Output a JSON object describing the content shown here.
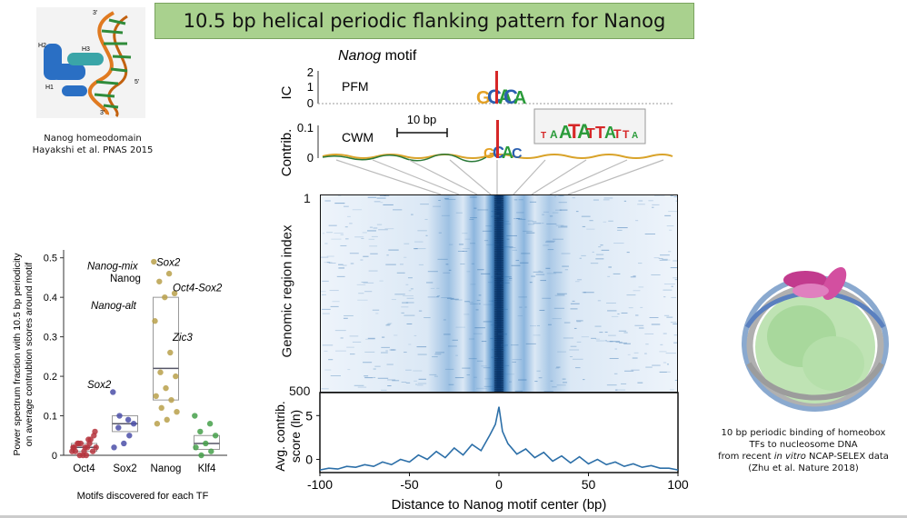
{
  "slide": {
    "title": "10.5 bp helical periodic flanking pattern for Nanog",
    "left_caption_line1": "Nanog homeodomain",
    "left_caption_line2": "Hayakshi et al. PNAS 2015",
    "right_caption_line1": "10 bp periodic binding of homeobox",
    "right_caption_line2": "TFs to nucleosome DNA",
    "right_caption_line3_pre": "from recent ",
    "right_caption_line3_em": "in vitro",
    "right_caption_line3_post": " NCAP-SELEX data",
    "right_caption_line4": "(Zhu et al. Nature 2018)",
    "structure_labels": {
      "h2": "H2",
      "h3": "H3",
      "h1": "H1",
      "three_prime": "3'",
      "five_prime": "5'",
      "three_prime_bottom": "3'"
    }
  },
  "motif_panel": {
    "title_em": "Nanog",
    "title_rest": " motif",
    "pfm_label": "PFM",
    "cwm_label": "CWM",
    "ic_axis": "IC",
    "contrib_axis": "Contrib.",
    "ic_ticks": [
      "2",
      "1",
      "0"
    ],
    "contrib_ticks": [
      "0.1",
      "0"
    ],
    "scale_label": "10 bp",
    "inset_letters": [
      "T",
      "A",
      "A",
      "T",
      "A",
      "T",
      "T",
      "A",
      "T",
      "T",
      "A"
    ]
  },
  "heatmap": {
    "ylabel": "Genomic region index",
    "y_top": "1",
    "y_bottom": "500"
  },
  "chart_data": [
    {
      "type": "scatter",
      "title": "",
      "xlabel": "Motifs discovered for each TF",
      "ylabel": "Power spectrum fraction with 10.5 bp periodicity on average contrubtion scores around motif",
      "categories": [
        "Oct4",
        "Sox2",
        "Nanog",
        "Klf4"
      ],
      "ylim": [
        0,
        0.52
      ],
      "yticks": [
        "0",
        "0.1",
        "0.2",
        "0.3",
        "0.4",
        "0.5"
      ],
      "colors": {
        "Oct4": "#b5343d",
        "Sox2": "#4b4fa8",
        "Nanog": "#b9a04a",
        "Klf4": "#45a04a"
      },
      "points": {
        "Oct4": [
          0.01,
          0.02,
          0.03,
          0.01,
          0.0,
          0.02,
          0.04,
          0.03,
          0.05,
          0.01,
          0.02,
          0.03,
          0.0,
          0.06,
          0.02,
          0.01,
          0.04,
          0.03,
          0.02,
          0.0
        ],
        "Sox2": [
          0.16,
          0.09,
          0.07,
          0.08,
          0.03,
          0.02,
          0.05,
          0.1
        ],
        "Nanog": [
          0.49,
          0.46,
          0.44,
          0.41,
          0.4,
          0.34,
          0.26,
          0.21,
          0.2,
          0.17,
          0.15,
          0.14,
          0.12,
          0.11,
          0.09,
          0.08
        ],
        "Klf4": [
          0.1,
          0.08,
          0.06,
          0.05,
          0.03,
          0.02,
          0.01,
          0.0
        ]
      },
      "boxes": {
        "Oct4": {
          "q1": 0.01,
          "median": 0.02,
          "q3": 0.03
        },
        "Sox2": {
          "q1": 0.06,
          "median": 0.08,
          "q3": 0.1
        },
        "Nanog": {
          "q1": 0.14,
          "median": 0.22,
          "q3": 0.4
        },
        "Klf4": {
          "q1": 0.015,
          "median": 0.03,
          "q3": 0.05
        }
      },
      "annotations": [
        "Nanog-mix",
        "Sox2",
        "Nanog",
        "Oct4-Sox2",
        "Nanog-alt",
        "Zic3",
        "Sox2"
      ]
    },
    {
      "type": "line",
      "title": "",
      "xlabel": "Distance to Nanog motif center (bp)",
      "ylabel": "Avg. contrib. score (ln)",
      "xlim": [
        -100,
        100
      ],
      "ylim": [
        -1.5,
        7
      ],
      "xticks": [
        "-100",
        "-50",
        "0",
        "50",
        "100"
      ],
      "yticks": [
        "5",
        "0"
      ],
      "color": "#2c6fa8",
      "x": [
        -100,
        -95,
        -90,
        -85,
        -80,
        -75,
        -70,
        -65,
        -60,
        -55,
        -50,
        -45,
        -40,
        -35,
        -30,
        -25,
        -20,
        -15,
        -10,
        -5,
        -2,
        0,
        2,
        5,
        10,
        15,
        20,
        25,
        30,
        35,
        40,
        45,
        50,
        55,
        60,
        65,
        70,
        75,
        80,
        85,
        90,
        95,
        100
      ],
      "y": [
        -1.2,
        -1.0,
        -1.1,
        -0.8,
        -0.9,
        -0.6,
        -0.8,
        -0.3,
        -0.6,
        0.0,
        -0.3,
        0.5,
        0.0,
        0.9,
        0.2,
        1.3,
        0.5,
        1.7,
        1.0,
        2.8,
        4.0,
        6.0,
        3.2,
        1.8,
        0.6,
        1.2,
        0.2,
        0.8,
        -0.2,
        0.4,
        -0.4,
        0.3,
        -0.5,
        0.0,
        -0.6,
        -0.3,
        -0.8,
        -0.5,
        -0.9,
        -0.7,
        -1.0,
        -1.0,
        -1.2
      ]
    }
  ]
}
